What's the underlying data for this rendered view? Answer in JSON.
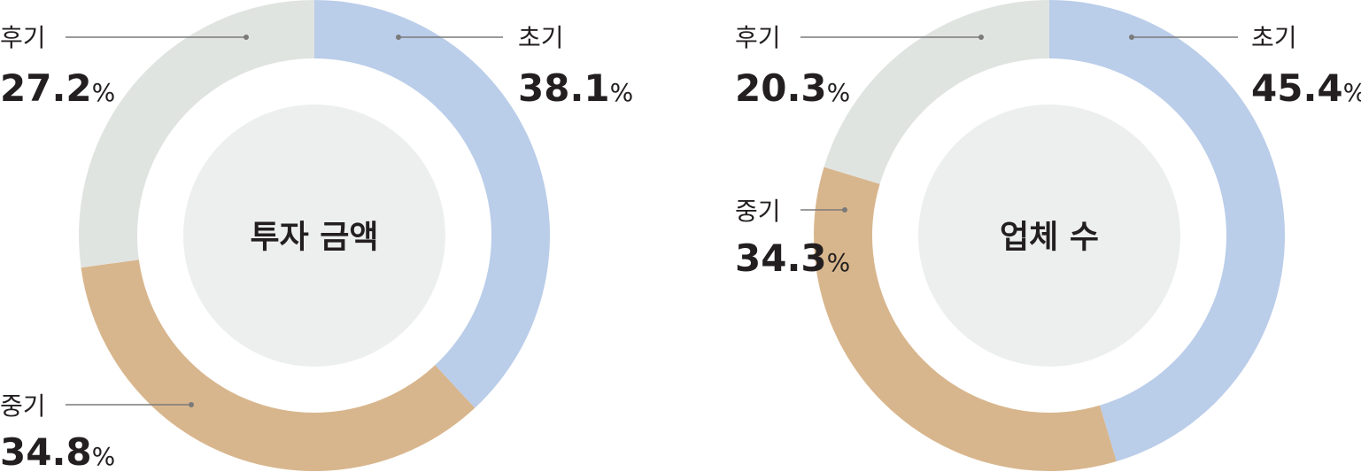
{
  "unit": "%",
  "chart_data": [
    {
      "type": "pie",
      "title": "투자 금액",
      "slices": [
        {
          "label": "초기",
          "value": 38.1,
          "color": "#bacde9"
        },
        {
          "label": "중기",
          "value": 34.8,
          "color": "#d8b68d"
        },
        {
          "label": "후기",
          "value": 27.2,
          "color": "#e0e4e1"
        }
      ]
    },
    {
      "type": "pie",
      "title": "업체 수",
      "slices": [
        {
          "label": "초기",
          "value": 45.4,
          "color": "#bacde9"
        },
        {
          "label": "중기",
          "value": 34.3,
          "color": "#d8b68d"
        },
        {
          "label": "후기",
          "value": 20.3,
          "color": "#e0e4e1"
        }
      ]
    }
  ]
}
